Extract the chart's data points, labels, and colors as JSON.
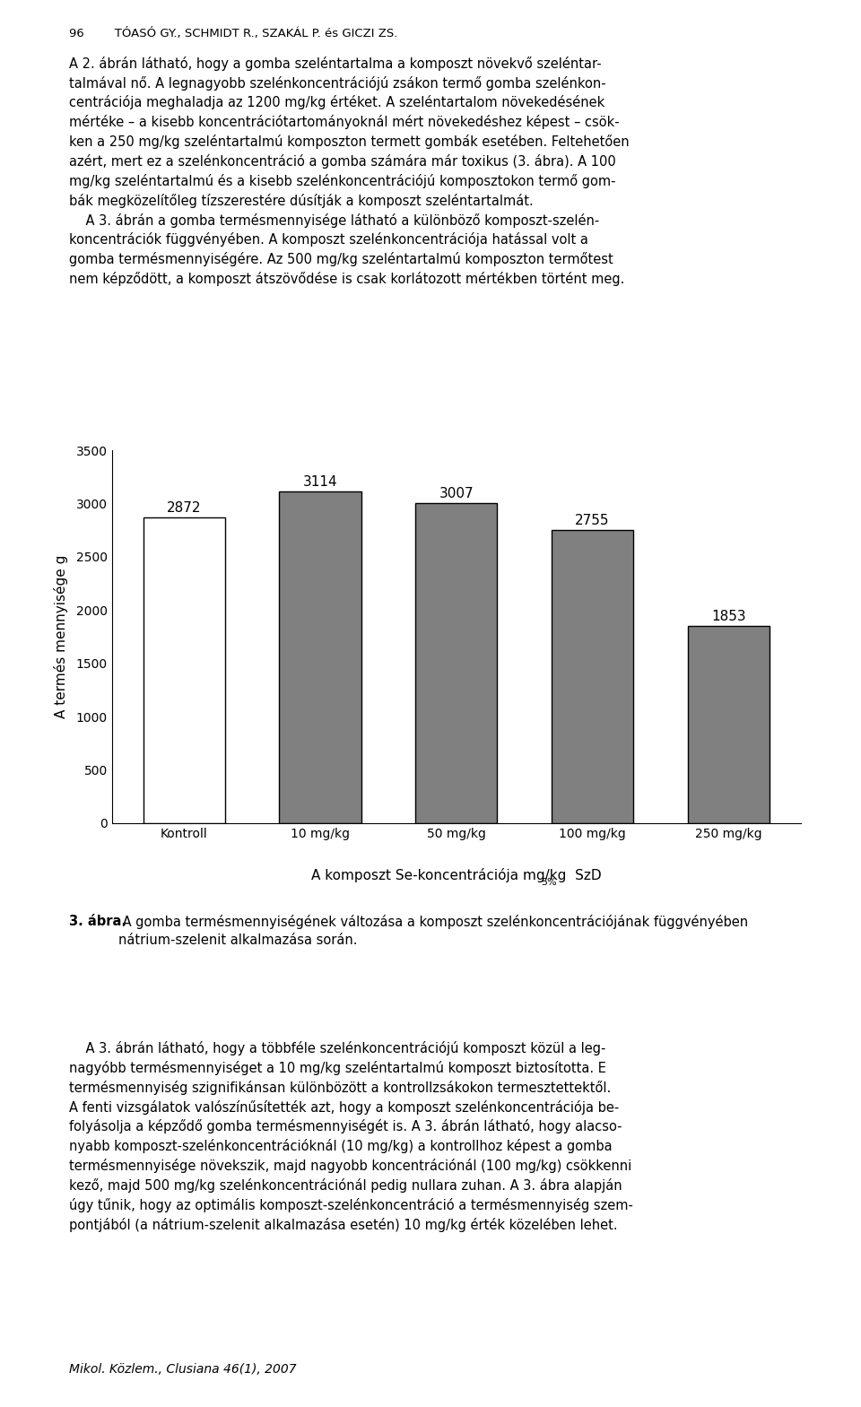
{
  "categories": [
    "Kontroll",
    "10 mg/kg",
    "50 mg/kg",
    "100 mg/kg",
    "250 mg/kg"
  ],
  "values": [
    2872,
    3114,
    3007,
    2755,
    1853
  ],
  "bar_colors": [
    "#ffffff",
    "#808080",
    "#808080",
    "#808080",
    "#808080"
  ],
  "bar_edgecolor": "#000000",
  "ylabel": "A termés mennyisége g",
  "xlabel_main": "A komposzt Se-koncentrációja mg/kg",
  "xlabel_sub": "SzD",
  "xlabel_sub_subscript": "5%",
  "ylim": [
    0,
    3500
  ],
  "yticks": [
    0,
    500,
    1000,
    1500,
    2000,
    2500,
    3000,
    3500
  ],
  "caption_bold": "3. ábra.",
  "caption_text": " A gomba termésmennyiségének változása a komposzt szelénkoncentrációjának függvényében\nnátrium-szelenit alkalmazása során.",
  "value_label_fontsize": 11,
  "axis_label_fontsize": 11,
  "tick_label_fontsize": 10,
  "bar_width": 0.6,
  "figure_width": 9.6,
  "figure_height": 15.69,
  "dpi": 100,
  "header_text": "96        TÓASÓ GY., SCHMIDT R., SZAKÁL P. és GICZI ZS.",
  "para1": "A 2. ábrán látható, hogy a gomba szeléntartalma a komposzt növekvő szeléntar-\ntalmával nő. A legnagyobb szelénkoncentrációjú zsákon termő gomba szelénkon-\ncentrációja meghaladja az 1200 mg/kg értéket. A szeléntartalom növekedésének\nmértéke – a kisebb koncentrációtartományoknál mért növekedéshez képest – csök-\nken a 250 mg/kg szeléntartalmú komposzton termett gombák esetében. Feltehetően\nazért, mert ez a szelénkoncentráció a gomba számára már toxikus (3. ábra). A 100\nmg/kg szeléntartalmú és a kisebb szelénkoncentrációjú komposztokon termő gom-\nbák megközelítőleg tízszerestére dúsítják a komposzt szeléntartalmát.\n    A 3. ábrán a gomba termésmennyisége látható a különböző komposzt-szelén-\nkoncentrációk függvényében. A komposzt szelénkoncentrációja hatással volt a\ngomba termésmennyiségére. Az 500 mg/kg szeléntartalmú komposzton termőtest\nnem képződött, a komposzt átszövődése is csak korlátozott mértékben történt meg.",
  "para2": "    A 3. ábrán látható, hogy a többféle szelénkoncentrációjú komposzt közül a leg-\nnagyóbb termésmennyiséget a 10 mg/kg szeléntartalmú komposzt biztosította. E\ntermésmennyiség szignifikánsan különbözött a kontrollzsákokon termesztettektől.\nA fenti vizsgálatok valószínűsítették azt, hogy a komposzt szelénkoncentrációja be-\nfolyásolja a képződő gomba termésmennyiségét is. A 3. ábrán látható, hogy alacso-\nnyabb komposzt-szelénkoncentrációknál (10 mg/kg) a kontrollhoz képest a gomba\ntermésmennyisége növekszik, majd nagyobb koncentrációnál (100 mg/kg) csökkenni\nkező, majd 500 mg/kg szelénkoncentrációnál pedig nullara zuhan. A 3. ábra alapján\núgy tűnik, hogy az optimális komposzt-szelénkoncentráció a termésmennyiség szem-\npontjából (a nátrium-szelenit alkalmazása esetén) 10 mg/kg érték közelében lehet.",
  "footer_text": "Mikol. Közlem., Clusiana 46(1), 2007"
}
